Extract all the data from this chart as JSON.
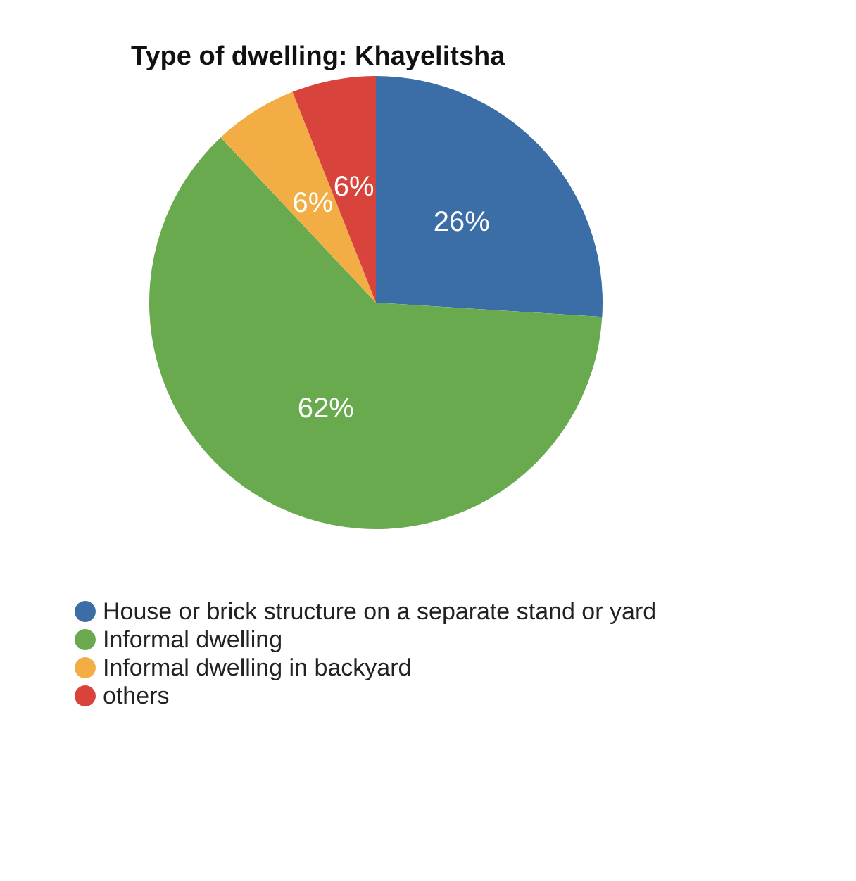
{
  "chart_data": {
    "type": "pie",
    "title": "Type of dwelling: Khayelitsha",
    "categories": [
      "House or brick structure on a separate stand or yard",
      "Informal dwelling",
      "Informal dwelling in backyard",
      "others"
    ],
    "values": [
      26,
      62,
      6,
      6
    ],
    "colors": [
      "#3b6ea6",
      "#6aaa4e",
      "#f2ae45",
      "#d8433b"
    ],
    "value_labels": [
      "26%",
      "62%",
      "6%",
      "6%"
    ],
    "legend": "bottom left"
  }
}
